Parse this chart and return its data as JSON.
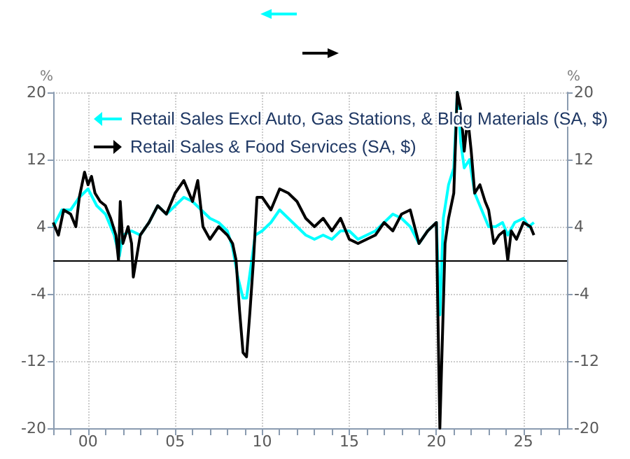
{
  "chart_data": {
    "type": "line",
    "ylabel": "%",
    "y2label": "%",
    "xlim": [
      1998,
      2027.5
    ],
    "xticks": [
      {
        "value": 1998,
        "label": null
      },
      {
        "value": 1999,
        "label": null
      },
      {
        "value": 2000,
        "label": "00"
      },
      {
        "value": 2001,
        "label": null
      },
      {
        "value": 2002,
        "label": null
      },
      {
        "value": 2003,
        "label": null
      },
      {
        "value": 2004,
        "label": null
      },
      {
        "value": 2005,
        "label": "05"
      },
      {
        "value": 2006,
        "label": null
      },
      {
        "value": 2007,
        "label": null
      },
      {
        "value": 2008,
        "label": null
      },
      {
        "value": 2009,
        "label": null
      },
      {
        "value": 2010,
        "label": "10"
      },
      {
        "value": 2011,
        "label": null
      },
      {
        "value": 2012,
        "label": null
      },
      {
        "value": 2013,
        "label": null
      },
      {
        "value": 2014,
        "label": null
      },
      {
        "value": 2015,
        "label": "15"
      },
      {
        "value": 2016,
        "label": null
      },
      {
        "value": 2017,
        "label": null
      },
      {
        "value": 2018,
        "label": null
      },
      {
        "value": 2019,
        "label": null
      },
      {
        "value": 2020,
        "label": "20"
      },
      {
        "value": 2021,
        "label": null
      },
      {
        "value": 2022,
        "label": null
      },
      {
        "value": 2023,
        "label": null
      },
      {
        "value": 2024,
        "label": null
      },
      {
        "value": 2025,
        "label": "25"
      },
      {
        "value": 2026,
        "label": null
      },
      {
        "value": 2027,
        "label": null
      }
    ],
    "ylim": [
      -20,
      20
    ],
    "yticks": [
      -20,
      -12,
      -4,
      4,
      12,
      20
    ],
    "y2lim": [
      -20,
      20
    ],
    "y2ticks": [
      -20,
      -12,
      -4,
      4,
      12,
      20
    ],
    "grid": true,
    "legend": "top",
    "marker": "none",
    "line_style": "solid",
    "ref_lines": [
      {
        "axis": "y",
        "value": 0,
        "color": "#000000"
      }
    ],
    "series": [
      {
        "name": "Retail Sales Excl Auto, Gas Stations, & Bldg Materials (SA, $)",
        "color": "#00ffff",
        "x": [
          1998,
          1998.5,
          1999,
          1999.5,
          2000,
          2000.5,
          2001,
          2001.5,
          2001.8,
          2002,
          2002.5,
          2003,
          2003.5,
          2004,
          2004.5,
          2005,
          2005.5,
          2006,
          2006.5,
          2007,
          2007.5,
          2008,
          2008.3,
          2008.6,
          2008.9,
          2009.1,
          2009.4,
          2009.6,
          2010,
          2010.5,
          2011,
          2011.5,
          2012,
          2012.5,
          2013,
          2013.5,
          2014,
          2014.5,
          2015,
          2015.5,
          2016,
          2016.5,
          2017,
          2017.5,
          2018,
          2018.5,
          2019,
          2019.5,
          2020,
          2020.2,
          2020.4,
          2020.7,
          2021,
          2021.2,
          2021.4,
          2021.6,
          2021.9,
          2022.2,
          2022.5,
          2022.8,
          2023,
          2023.4,
          2023.8,
          2024.1,
          2024.5,
          2025,
          2025.3,
          2025.6
        ],
        "values": [
          4,
          6,
          6,
          7.5,
          8.5,
          6.5,
          5.5,
          3,
          0.5,
          3,
          3.5,
          3,
          4.5,
          6.5,
          5.5,
          6.5,
          7.5,
          7,
          6,
          5,
          4.5,
          3.5,
          1.5,
          -2,
          -4.5,
          -4.5,
          0,
          3,
          3.5,
          4.5,
          6,
          5,
          4,
          3,
          2.5,
          3,
          2.5,
          3.5,
          3.5,
          2.5,
          3,
          3.5,
          4.5,
          5.5,
          5,
          4,
          2,
          3.5,
          4.5,
          -6.5,
          5,
          9,
          11,
          20,
          14,
          11,
          12,
          8,
          6.5,
          5,
          4,
          4,
          4.5,
          3,
          4.5,
          5,
          4,
          4.5
        ]
      },
      {
        "name": "Retail Sales & Food Services (SA, $)",
        "color": "#000000",
        "axis": "y2",
        "x": [
          1998,
          1998.3,
          1998.6,
          1999,
          1999.3,
          1999.5,
          1999.8,
          2000,
          2000.2,
          2000.4,
          2000.7,
          2001,
          2001.3,
          2001.6,
          2001.75,
          2001.85,
          2002,
          2002.3,
          2002.5,
          2002.6,
          2003,
          2003.5,
          2004,
          2004.5,
          2005,
          2005.5,
          2006,
          2006.3,
          2006.6,
          2007,
          2007.5,
          2008,
          2008.3,
          2008.5,
          2008.7,
          2008.9,
          2009.1,
          2009.3,
          2009.5,
          2009.7,
          2010,
          2010.5,
          2011,
          2011.5,
          2012,
          2012.5,
          2013,
          2013.5,
          2014,
          2014.5,
          2015,
          2015.5,
          2016,
          2016.5,
          2017,
          2017.5,
          2018,
          2018.5,
          2019,
          2019.5,
          2020,
          2020.2,
          2020.5,
          2020.7,
          2021,
          2021.2,
          2021.4,
          2021.6,
          2021.8,
          2022,
          2022.2,
          2022.5,
          2022.8,
          2023,
          2023.3,
          2023.6,
          2023.9,
          2024.1,
          2024.3,
          2024.6,
          2025,
          2025.4,
          2025.6
        ],
        "values": [
          4.5,
          3,
          6,
          5.5,
          4,
          7.5,
          10.5,
          9,
          10,
          8,
          7,
          6.5,
          5,
          3,
          0,
          7,
          2,
          4,
          2,
          -2,
          3,
          4.5,
          6.5,
          5.5,
          8,
          9.5,
          7,
          9.5,
          4,
          2.5,
          4,
          3,
          2,
          0,
          -6,
          -11,
          -11.5,
          -6,
          0,
          7.5,
          7.5,
          6,
          8.5,
          8,
          7,
          5,
          4,
          5,
          3.5,
          5,
          2.5,
          2,
          2.5,
          3,
          4.5,
          3.5,
          5.5,
          6,
          2,
          3.5,
          4.5,
          -20,
          2,
          5,
          8,
          20,
          18,
          13,
          17,
          13,
          8,
          9,
          7,
          6,
          2,
          3,
          3.5,
          0,
          3.5,
          2.5,
          4.5,
          4,
          3
        ]
      }
    ]
  }
}
